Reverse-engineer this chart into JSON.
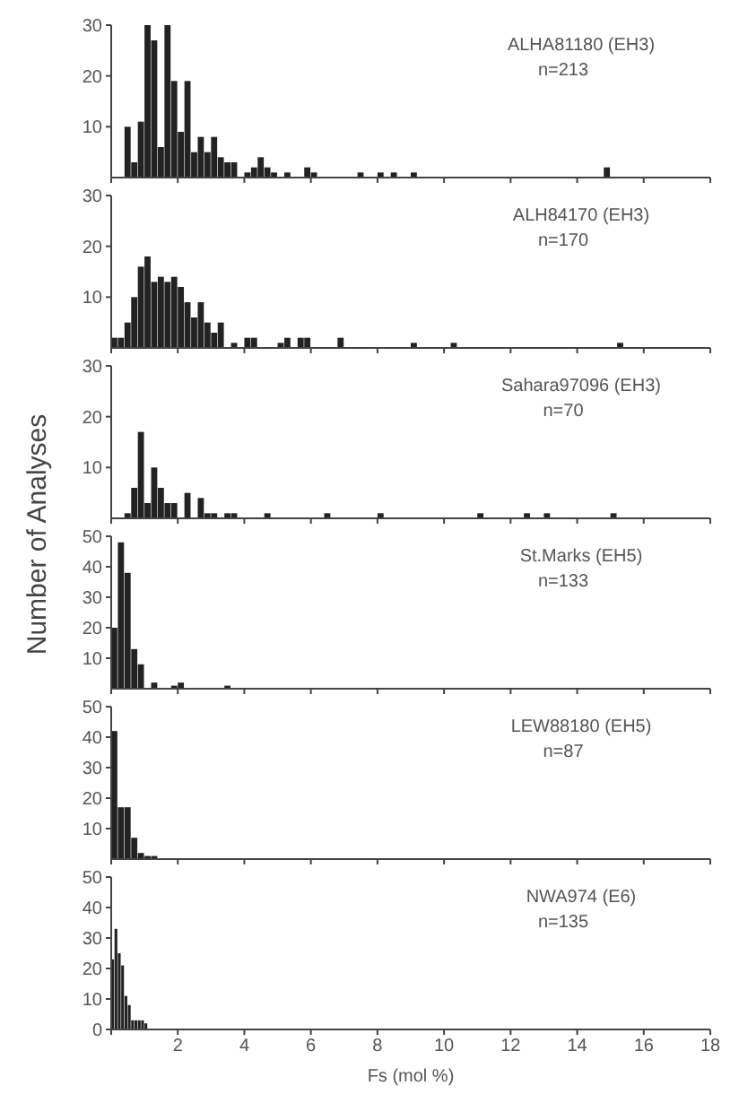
{
  "chart_data": [
    {
      "type": "histogram",
      "title": "ALHA81180 (EH3)",
      "annotations": [
        "n=213"
      ],
      "color": "#222222",
      "xlim": [
        0,
        18
      ],
      "xticks": [
        {
          "value": 0,
          "label": null
        },
        {
          "value": 2,
          "label": null
        },
        {
          "value": 4,
          "label": null
        },
        {
          "value": 6,
          "label": null
        },
        {
          "value": 8,
          "label": null
        },
        {
          "value": 10,
          "label": null
        },
        {
          "value": 12,
          "label": null
        },
        {
          "value": 14,
          "label": null
        },
        {
          "value": 16,
          "label": null
        },
        {
          "value": 18,
          "label": null
        }
      ],
      "ylim": [
        0,
        30
      ],
      "yticks": [
        10,
        20,
        30
      ],
      "tick_labels": "y",
      "bins": [
        0,
        0.2,
        0.4,
        0.6,
        0.8,
        1,
        1.2,
        1.4,
        1.6,
        1.8,
        2,
        2.2,
        2.4,
        2.6,
        2.8,
        3,
        3.2,
        3.4,
        3.6,
        3.8,
        4,
        4.2,
        4.4,
        4.6,
        4.8,
        5,
        5.2,
        5.4,
        5.6,
        5.8,
        6,
        6.2,
        6.4,
        6.6,
        6.8,
        7,
        7.2,
        7.4,
        7.6,
        7.8,
        8,
        8.2,
        8.4,
        8.6,
        8.8,
        9,
        9.2,
        9.4,
        9.6,
        9.8,
        10,
        10.2,
        10.4,
        10.6,
        10.8,
        11,
        11.2,
        11.4,
        11.6,
        11.8,
        12,
        12.2,
        12.4,
        12.6,
        12.8,
        13,
        13.2,
        13.4,
        13.6,
        13.8,
        14,
        14.2,
        14.4,
        14.6,
        14.8,
        15
      ],
      "values": [
        0,
        0,
        10,
        3,
        11,
        30,
        27,
        6,
        30,
        19,
        9,
        19,
        5,
        8,
        5,
        8,
        4,
        3,
        3,
        0,
        1,
        2,
        4,
        2,
        1,
        0,
        1,
        0,
        0,
        2,
        1,
        0,
        0,
        0,
        0,
        0,
        0,
        1,
        0,
        0,
        1,
        0,
        1,
        0,
        0,
        1,
        0,
        0,
        0,
        0,
        0,
        0,
        0,
        0,
        0,
        0,
        0,
        0,
        0,
        0,
        0,
        0,
        0,
        0,
        0,
        0,
        0,
        0,
        0,
        0,
        0,
        0,
        0,
        0,
        2
      ]
    },
    {
      "type": "histogram",
      "title": "ALH84170 (EH3)",
      "annotations": [
        "n=170"
      ],
      "color": "#222222",
      "xlim": [
        0,
        18
      ],
      "xticks": [
        {
          "value": 0,
          "label": null
        },
        {
          "value": 2,
          "label": null
        },
        {
          "value": 4,
          "label": null
        },
        {
          "value": 6,
          "label": null
        },
        {
          "value": 8,
          "label": null
        },
        {
          "value": 10,
          "label": null
        },
        {
          "value": 12,
          "label": null
        },
        {
          "value": 14,
          "label": null
        },
        {
          "value": 16,
          "label": null
        },
        {
          "value": 18,
          "label": null
        }
      ],
      "ylim": [
        0,
        30
      ],
      "yticks": [
        10,
        20,
        30
      ],
      "tick_labels": "y",
      "bins": [
        0,
        0.2,
        0.4,
        0.6,
        0.8,
        1,
        1.2,
        1.4,
        1.6,
        1.8,
        2,
        2.2,
        2.4,
        2.6,
        2.8,
        3,
        3.2,
        3.4,
        3.6,
        3.8,
        4,
        4.2,
        4.4,
        4.6,
        4.8,
        5,
        5.2,
        5.4,
        5.6,
        5.8,
        6,
        6.2,
        6.4,
        6.6,
        6.8,
        7,
        7.2,
        7.4,
        7.6,
        7.8,
        8,
        8.2,
        8.4,
        8.6,
        8.8,
        9,
        9.2,
        9.4,
        9.6,
        9.8,
        10,
        10.2,
        10.4,
        10.6,
        10.8,
        11,
        11.2,
        11.4,
        11.6,
        11.8,
        12,
        12.2,
        12.4,
        12.6,
        12.8,
        13,
        13.2,
        13.4,
        13.6,
        13.8,
        14,
        14.2,
        14.4,
        14.6,
        14.8,
        15,
        15.2,
        15.4
      ],
      "values": [
        2,
        2,
        5,
        10,
        16,
        18,
        13,
        14,
        13,
        14,
        12,
        9,
        6,
        9,
        5,
        3,
        5,
        0,
        1,
        0,
        2,
        2,
        0,
        0,
        0,
        1,
        2,
        0,
        2,
        2,
        0,
        0,
        0,
        0,
        2,
        0,
        0,
        0,
        0,
        0,
        0,
        0,
        0,
        0,
        0,
        1,
        0,
        0,
        0,
        0,
        0,
        1,
        0,
        0,
        0,
        0,
        0,
        0,
        0,
        0,
        0,
        0,
        0,
        0,
        0,
        0,
        0,
        0,
        0,
        0,
        0,
        0,
        0,
        0,
        0,
        0,
        1
      ]
    },
    {
      "type": "histogram",
      "title": "Sahara97096 (EH3)",
      "annotations": [
        "n=70"
      ],
      "ylabel": "Number of Analyses",
      "color": "#222222",
      "xlim": [
        0,
        18
      ],
      "xticks": [
        {
          "value": 0,
          "label": null
        },
        {
          "value": 2,
          "label": null
        },
        {
          "value": 4,
          "label": null
        },
        {
          "value": 6,
          "label": null
        },
        {
          "value": 8,
          "label": null
        },
        {
          "value": 10,
          "label": null
        },
        {
          "value": 12,
          "label": null
        },
        {
          "value": 14,
          "label": null
        },
        {
          "value": 16,
          "label": null
        },
        {
          "value": 18,
          "label": null
        }
      ],
      "ylim": [
        0,
        30
      ],
      "yticks": [
        10,
        20,
        30
      ],
      "tick_labels": "y",
      "bins": [
        0,
        0.2,
        0.4,
        0.6,
        0.8,
        1,
        1.2,
        1.4,
        1.6,
        1.8,
        2,
        2.2,
        2.4,
        2.6,
        2.8,
        3,
        3.2,
        3.4,
        3.6,
        3.8,
        4,
        4.2,
        4.4,
        4.6,
        4.8,
        5,
        5.2,
        5.4,
        5.6,
        5.8,
        6,
        6.2,
        6.4,
        6.6,
        6.8,
        7,
        7.2,
        7.4,
        7.6,
        7.8,
        8,
        8.2,
        8.4,
        8.6,
        8.8,
        9,
        9.2,
        9.4,
        9.6,
        9.8,
        10,
        10.2,
        10.4,
        10.6,
        10.8,
        11,
        11.2,
        11.4,
        11.6,
        11.8,
        12,
        12.2,
        12.4,
        12.6,
        12.8,
        13,
        13.2,
        13.4,
        13.6,
        13.8,
        14,
        14.2,
        14.4,
        14.6,
        14.8,
        15,
        15.2
      ],
      "values": [
        0,
        0,
        1,
        6,
        17,
        3,
        10,
        6,
        3,
        3,
        0,
        5,
        0,
        4,
        1,
        1,
        0,
        1,
        1,
        0,
        0,
        0,
        0,
        1,
        0,
        0,
        0,
        0,
        0,
        0,
        0,
        0,
        1,
        0,
        0,
        0,
        0,
        0,
        0,
        0,
        1,
        0,
        0,
        0,
        0,
        0,
        0,
        0,
        0,
        0,
        0,
        0,
        0,
        0,
        0,
        1,
        0,
        0,
        0,
        0,
        0,
        0,
        1,
        0,
        0,
        1,
        0,
        0,
        0,
        0,
        0,
        0,
        0,
        0,
        0,
        1
      ]
    },
    {
      "type": "histogram",
      "title": "St.Marks (EH5)",
      "annotations": [
        "n=133"
      ],
      "color": "#222222",
      "xlim": [
        0,
        18
      ],
      "xticks": [
        {
          "value": 0,
          "label": null
        },
        {
          "value": 2,
          "label": null
        },
        {
          "value": 4,
          "label": null
        },
        {
          "value": 6,
          "label": null
        },
        {
          "value": 8,
          "label": null
        },
        {
          "value": 10,
          "label": null
        },
        {
          "value": 12,
          "label": null
        },
        {
          "value": 14,
          "label": null
        },
        {
          "value": 16,
          "label": null
        },
        {
          "value": 18,
          "label": null
        }
      ],
      "ylim": [
        0,
        50
      ],
      "yticks": [
        10,
        20,
        30,
        40,
        50
      ],
      "tick_labels": "y",
      "bins": [
        0,
        0.2,
        0.4,
        0.6,
        0.8,
        1,
        1.2,
        1.4,
        1.6,
        1.8,
        2,
        2.2,
        2.4,
        2.6,
        2.8,
        3,
        3.2,
        3.4,
        3.6
      ],
      "values": [
        20,
        48,
        38,
        13,
        8,
        0,
        2,
        0,
        0,
        1,
        2,
        0,
        0,
        0,
        0,
        0,
        0,
        1
      ]
    },
    {
      "type": "histogram",
      "title": "LEW88180 (EH5)",
      "annotations": [
        "n=87"
      ],
      "color": "#222222",
      "xlim": [
        0,
        18
      ],
      "xticks": [
        {
          "value": 0,
          "label": null
        },
        {
          "value": 2,
          "label": null
        },
        {
          "value": 4,
          "label": null
        },
        {
          "value": 6,
          "label": null
        },
        {
          "value": 8,
          "label": null
        },
        {
          "value": 10,
          "label": null
        },
        {
          "value": 12,
          "label": null
        },
        {
          "value": 14,
          "label": null
        },
        {
          "value": 16,
          "label": null
        },
        {
          "value": 18,
          "label": null
        }
      ],
      "ylim": [
        0,
        50
      ],
      "yticks": [
        10,
        20,
        30,
        40,
        50
      ],
      "tick_labels": "y",
      "bins": [
        0,
        0.2,
        0.4,
        0.6,
        0.8,
        1,
        1.2,
        1.4
      ],
      "values": [
        42,
        17,
        17,
        7,
        2,
        1,
        1
      ]
    },
    {
      "type": "histogram",
      "title": "NWA974 (E6)",
      "annotations": [
        "n=135"
      ],
      "xlabel": "Fs (mol %)",
      "color": "#222222",
      "xlim": [
        0,
        18
      ],
      "xticks": [
        {
          "value": 0,
          "label": null
        },
        2,
        4,
        6,
        8,
        10,
        12,
        14,
        16,
        18
      ],
      "ylim": [
        0,
        50
      ],
      "yticks": [
        0,
        10,
        20,
        30,
        40,
        50
      ],
      "bins": [
        0,
        0.1,
        0.2,
        0.3,
        0.4,
        0.5,
        0.6,
        0.7,
        0.8,
        0.9,
        1,
        1.1
      ],
      "values": [
        23,
        33,
        25,
        21,
        11,
        8,
        3,
        3,
        3,
        3,
        2
      ]
    }
  ]
}
